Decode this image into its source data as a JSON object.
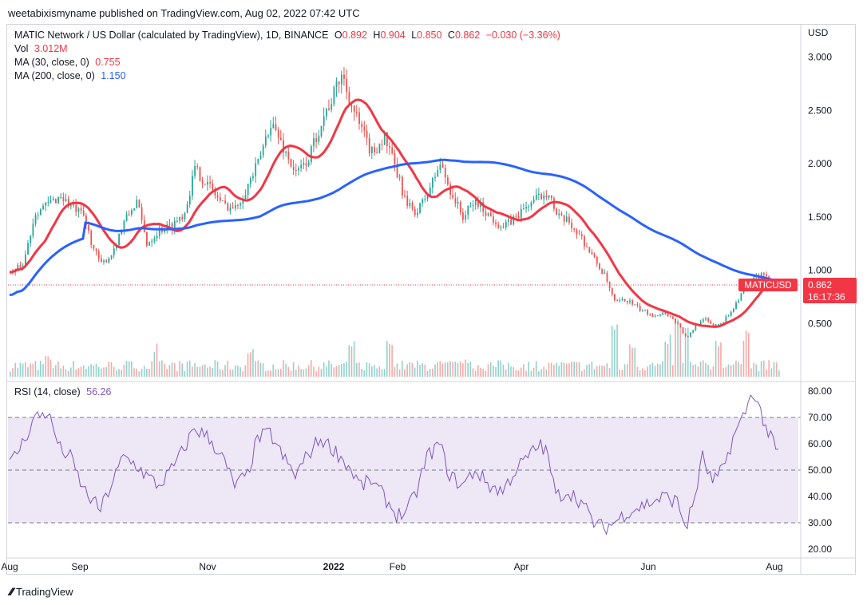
{
  "header": {
    "published": "weetabixismyname published on TradingView.com, Aug 02, 2022 07:42 UTC"
  },
  "legend": {
    "symbol": "MATIC Network / US Dollar (calculated by TradingView), 1D, BINANCE",
    "o_label": "O",
    "o": "0.892",
    "h_label": "H",
    "h": "0.904",
    "l_label": "L",
    "l": "0.850",
    "c_label": "C",
    "c": "0.862",
    "change": "−0.030 (−3.36%)",
    "vol_label": "Vol",
    "vol": "3.012M",
    "ma30_label": "MA (30, close, 0)",
    "ma30": "0.755",
    "ma200_label": "MA (200, close, 0)",
    "ma200": "1.150",
    "rsi_label": "RSI (14, close)",
    "rsi": "56.26"
  },
  "price_axis": {
    "currency": "USD",
    "ticks": [
      "3.000",
      "2.500",
      "2.000",
      "1.500",
      "1.000",
      "0.500"
    ]
  },
  "rsi_axis": {
    "ticks": [
      "80.00",
      "70.00",
      "60.00",
      "50.00",
      "40.00",
      "30.00",
      "20.00"
    ]
  },
  "time_axis": [
    "Aug",
    "Sep",
    "Nov",
    "2022",
    "Feb",
    "Apr",
    "Jun",
    "Aug"
  ],
  "price_tag": {
    "symbol": "MATICUSD",
    "price": "0.862",
    "countdown": "16:17:36"
  },
  "footer": {
    "brand": "TradingView"
  },
  "colors": {
    "up": "#26a69a",
    "down": "#ef5350",
    "ma30": "#f23645",
    "ma200": "#2962ff",
    "rsi": "#7e57c2",
    "rsi_band": "#ede7f6"
  },
  "chart_data": {
    "type": "candlestick",
    "interval": "1D",
    "price_ylim": [
      0.0,
      3.2
    ],
    "rsi_ylim": [
      17,
      83
    ],
    "rsi_levels": [
      70,
      50,
      30
    ],
    "price_anchors": [
      [
        0,
        0.97
      ],
      [
        10,
        1.05
      ],
      [
        20,
        1.55
      ],
      [
        30,
        1.62
      ],
      [
        40,
        1.7
      ],
      [
        48,
        1.6
      ],
      [
        58,
        1.5
      ],
      [
        66,
        1.2
      ],
      [
        72,
        1.05
      ],
      [
        80,
        1.15
      ],
      [
        90,
        1.45
      ],
      [
        100,
        1.65
      ],
      [
        108,
        1.25
      ],
      [
        118,
        1.38
      ],
      [
        128,
        1.42
      ],
      [
        138,
        1.55
      ],
      [
        146,
        1.95
      ],
      [
        158,
        1.78
      ],
      [
        168,
        1.62
      ],
      [
        178,
        1.58
      ],
      [
        188,
        1.8
      ],
      [
        196,
        2.0
      ],
      [
        206,
        2.4
      ],
      [
        216,
        2.15
      ],
      [
        226,
        1.9
      ],
      [
        236,
        2.05
      ],
      [
        246,
        2.4
      ],
      [
        256,
        2.65
      ],
      [
        262,
        2.85
      ],
      [
        270,
        2.55
      ],
      [
        278,
        2.3
      ],
      [
        286,
        2.1
      ],
      [
        296,
        2.25
      ],
      [
        306,
        1.9
      ],
      [
        314,
        1.6
      ],
      [
        322,
        1.55
      ],
      [
        330,
        1.72
      ],
      [
        340,
        2.0
      ],
      [
        348,
        1.75
      ],
      [
        358,
        1.5
      ],
      [
        368,
        1.65
      ],
      [
        380,
        1.5
      ],
      [
        390,
        1.4
      ],
      [
        400,
        1.5
      ],
      [
        410,
        1.62
      ],
      [
        420,
        1.7
      ],
      [
        426,
        1.75
      ],
      [
        432,
        1.5
      ],
      [
        442,
        1.45
      ],
      [
        452,
        1.3
      ],
      [
        462,
        1.1
      ],
      [
        470,
        0.95
      ],
      [
        478,
        0.7
      ],
      [
        488,
        0.72
      ],
      [
        498,
        0.63
      ],
      [
        508,
        0.58
      ],
      [
        518,
        0.6
      ],
      [
        528,
        0.5
      ],
      [
        535,
        0.35
      ],
      [
        542,
        0.48
      ],
      [
        548,
        0.55
      ],
      [
        556,
        0.48
      ],
      [
        564,
        0.52
      ],
      [
        572,
        0.65
      ],
      [
        580,
        0.82
      ],
      [
        588,
        0.92
      ],
      [
        594,
        0.95
      ],
      [
        600,
        0.9
      ],
      [
        608,
        0.88
      ]
    ],
    "rsi_anchors": [
      [
        0,
        52
      ],
      [
        10,
        60
      ],
      [
        20,
        70
      ],
      [
        30,
        72
      ],
      [
        40,
        58
      ],
      [
        48,
        55
      ],
      [
        58,
        43
      ],
      [
        66,
        38
      ],
      [
        72,
        35
      ],
      [
        80,
        44
      ],
      [
        90,
        55
      ],
      [
        100,
        52
      ],
      [
        108,
        48
      ],
      [
        118,
        44
      ],
      [
        128,
        50
      ],
      [
        138,
        58
      ],
      [
        146,
        66
      ],
      [
        158,
        62
      ],
      [
        168,
        55
      ],
      [
        178,
        44
      ],
      [
        188,
        48
      ],
      [
        196,
        62
      ],
      [
        206,
        64
      ],
      [
        216,
        55
      ],
      [
        226,
        48
      ],
      [
        236,
        56
      ],
      [
        246,
        62
      ],
      [
        256,
        58
      ],
      [
        262,
        55
      ],
      [
        270,
        50
      ],
      [
        278,
        44
      ],
      [
        286,
        46
      ],
      [
        296,
        40
      ],
      [
        306,
        33
      ],
      [
        314,
        34
      ],
      [
        322,
        42
      ],
      [
        330,
        55
      ],
      [
        340,
        60
      ],
      [
        348,
        48
      ],
      [
        358,
        44
      ],
      [
        368,
        50
      ],
      [
        380,
        44
      ],
      [
        390,
        42
      ],
      [
        400,
        50
      ],
      [
        410,
        55
      ],
      [
        420,
        60
      ],
      [
        426,
        55
      ],
      [
        432,
        40
      ],
      [
        442,
        42
      ],
      [
        452,
        38
      ],
      [
        462,
        30
      ],
      [
        470,
        28
      ],
      [
        478,
        30
      ],
      [
        488,
        34
      ],
      [
        498,
        36
      ],
      [
        508,
        38
      ],
      [
        518,
        40
      ],
      [
        528,
        38
      ],
      [
        535,
        28
      ],
      [
        542,
        40
      ],
      [
        548,
        55
      ],
      [
        556,
        45
      ],
      [
        564,
        50
      ],
      [
        572,
        62
      ],
      [
        580,
        70
      ],
      [
        588,
        80
      ],
      [
        594,
        72
      ],
      [
        600,
        64
      ],
      [
        608,
        56
      ]
    ],
    "volume_spikes": [
      [
        30,
        2.2
      ],
      [
        115,
        3.5
      ],
      [
        190,
        3.0
      ],
      [
        270,
        3.8
      ],
      [
        300,
        4.5
      ],
      [
        360,
        1.8
      ],
      [
        430,
        1.5
      ],
      [
        478,
        6.0
      ],
      [
        492,
        4.0
      ],
      [
        520,
        4.5
      ],
      [
        528,
        6.5
      ],
      [
        535,
        5.5
      ],
      [
        560,
        4.2
      ],
      [
        582,
        5.0
      ]
    ]
  }
}
